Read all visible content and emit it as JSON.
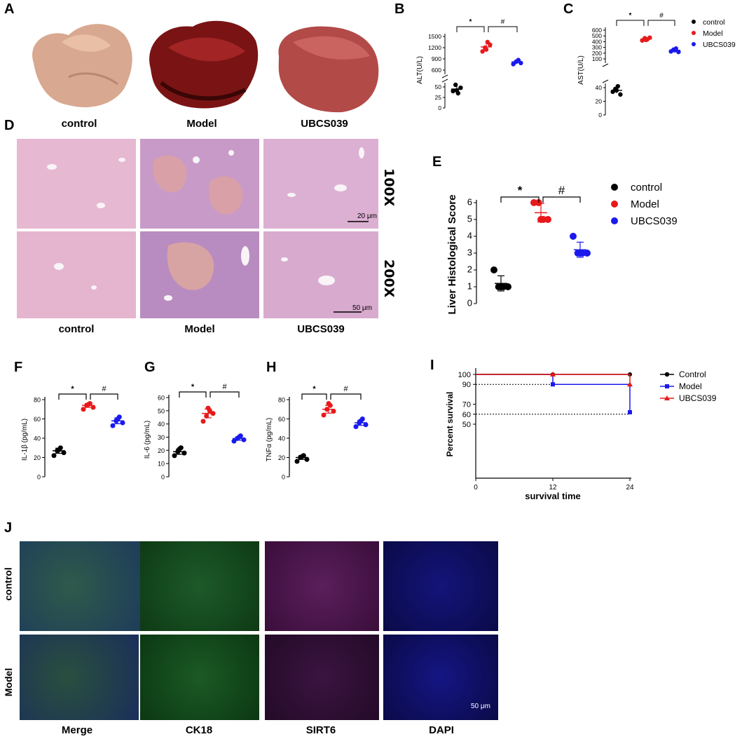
{
  "panel_labels": {
    "A": "A",
    "B": "B",
    "C": "C",
    "D": "D",
    "E": "E",
    "F": "F",
    "G": "G",
    "H": "H",
    "I": "I",
    "J": "J"
  },
  "groups": [
    "control",
    "Model",
    "UBCS039"
  ],
  "colors": {
    "control": "#000000",
    "Model": "#e8191b",
    "UBCS039": "#1a1aee"
  },
  "panelA": {
    "captions": [
      "control",
      "Model",
      "UBCS039"
    ]
  },
  "panelD": {
    "captions": [
      "control",
      "Model",
      "UBCS039"
    ],
    "mag_100": "100X",
    "mag_200": "200X",
    "scale_100": "20 μm",
    "scale_200": "50 μm"
  },
  "panelJ": {
    "columns": [
      "Merge",
      "CK18",
      "SIRT6",
      "DAPI"
    ],
    "rows": [
      "control",
      "Model"
    ],
    "scale": "50 μm"
  },
  "chart_data": [
    {
      "id": "B",
      "type": "scatter",
      "ylabel": "ALT(U/L)",
      "y_ticks_low": [
        "0",
        "25",
        "50"
      ],
      "y_ticks_high": [
        "600",
        "900",
        "1200",
        "1500"
      ],
      "series": [
        {
          "name": "control",
          "values": [
            40,
            55,
            35,
            48,
            42
          ],
          "mean": 45
        },
        {
          "name": "Model",
          "values": [
            1100,
            1200,
            1350,
            1280,
            1150
          ],
          "mean": 1220
        },
        {
          "name": "UBCS039",
          "values": [
            760,
            820,
            870,
            790,
            840
          ],
          "mean": 820
        }
      ],
      "sig": [
        {
          "from": "control",
          "to": "Model",
          "mark": "*"
        },
        {
          "from": "Model",
          "to": "UBCS039",
          "mark": "#"
        }
      ]
    },
    {
      "id": "C",
      "type": "scatter",
      "ylabel": "AST(U/L)",
      "y_ticks_low": [
        "0",
        "20",
        "40"
      ],
      "y_ticks_high": [
        "100",
        "200",
        "300",
        "400",
        "500",
        "600"
      ],
      "series": [
        {
          "name": "control",
          "values": [
            34,
            38,
            42,
            30,
            36
          ],
          "mean": 36
        },
        {
          "name": "Model",
          "values": [
            420,
            460,
            440,
            470,
            430
          ],
          "mean": 445
        },
        {
          "name": "UBCS039",
          "values": [
            230,
            260,
            280,
            220,
            250
          ],
          "mean": 250
        }
      ],
      "legend": [
        "control",
        "Model",
        "UBCS039"
      ],
      "sig": [
        {
          "from": "control",
          "to": "Model",
          "mark": "*"
        },
        {
          "from": "Model",
          "to": "UBCS039",
          "mark": "#"
        }
      ]
    },
    {
      "id": "E",
      "type": "scatter",
      "ylabel": "Liver Histological Score",
      "ylim": [
        0,
        6
      ],
      "y_ticks": [
        "0",
        "1",
        "2",
        "3",
        "4",
        "5",
        "6"
      ],
      "series": [
        {
          "name": "control",
          "values": [
            2,
            1,
            1,
            1,
            1
          ],
          "mean": 1.2,
          "sd": 0.45
        },
        {
          "name": "Model",
          "values": [
            6,
            6,
            5,
            5,
            5
          ],
          "mean": 5.4,
          "sd": 0.55
        },
        {
          "name": "UBCS039",
          "values": [
            4,
            3,
            3,
            3,
            3
          ],
          "mean": 3.2,
          "sd": 0.45
        }
      ],
      "legend": [
        "control",
        "Model",
        "UBCS039"
      ],
      "sig": [
        {
          "from": "control",
          "to": "Model",
          "mark": "*"
        },
        {
          "from": "Model",
          "to": "UBCS039",
          "mark": "#"
        }
      ]
    },
    {
      "id": "F",
      "type": "scatter",
      "ylabel": "IL-1β (pg/mL)",
      "ylim": [
        0,
        80
      ],
      "y_ticks": [
        "0",
        "20",
        "40",
        "60",
        "80"
      ],
      "series": [
        {
          "name": "control",
          "values": [
            22,
            27,
            30,
            25,
            28
          ],
          "mean": 27
        },
        {
          "name": "Model",
          "values": [
            70,
            74,
            76,
            72,
            75
          ],
          "mean": 74
        },
        {
          "name": "UBCS039",
          "values": [
            53,
            58,
            62,
            56,
            60
          ],
          "mean": 58
        }
      ],
      "sig": [
        {
          "from": "control",
          "to": "Model",
          "mark": "*"
        },
        {
          "from": "Model",
          "to": "UBCS039",
          "mark": "#"
        }
      ]
    },
    {
      "id": "G",
      "type": "scatter",
      "ylabel": "IL-6 (pg/mL)",
      "ylim": [
        0,
        60
      ],
      "y_ticks": [
        "0",
        "10",
        "20",
        "30",
        "40",
        "50",
        "60"
      ],
      "series": [
        {
          "name": "control",
          "values": [
            16,
            19,
            22,
            18,
            21
          ],
          "mean": 19
        },
        {
          "name": "Model",
          "values": [
            42,
            46,
            50,
            48,
            52
          ],
          "mean": 48
        },
        {
          "name": "UBCS039",
          "values": [
            27,
            29,
            31,
            28,
            30
          ],
          "mean": 29
        }
      ],
      "sig": [
        {
          "from": "control",
          "to": "Model",
          "mark": "*"
        },
        {
          "from": "Model",
          "to": "UBCS039",
          "mark": "#"
        }
      ]
    },
    {
      "id": "H",
      "type": "scatter",
      "ylabel": "TNFα (pg/mL)",
      "ylim": [
        0,
        80
      ],
      "y_ticks": [
        "0",
        "20",
        "40",
        "60",
        "80"
      ],
      "series": [
        {
          "name": "control",
          "values": [
            16,
            20,
            22,
            18,
            21
          ],
          "mean": 20
        },
        {
          "name": "Model",
          "values": [
            64,
            70,
            74,
            68,
            76
          ],
          "mean": 70
        },
        {
          "name": "UBCS039",
          "values": [
            52,
            56,
            60,
            54,
            58
          ],
          "mean": 56
        }
      ],
      "sig": [
        {
          "from": "control",
          "to": "Model",
          "mark": "*"
        },
        {
          "from": "Model",
          "to": "UBCS039",
          "mark": "#"
        }
      ]
    },
    {
      "id": "I",
      "type": "line",
      "xlabel": "survival time",
      "ylabel": "Percent survival",
      "x_ticks": [
        "0",
        "12",
        "24"
      ],
      "y_ticks": [
        "50",
        "60",
        "70",
        "90",
        "100"
      ],
      "series": [
        {
          "name": "Control",
          "x": [
            0,
            12,
            24
          ],
          "y": [
            100,
            100,
            100
          ]
        },
        {
          "name": "Model",
          "x": [
            0,
            12,
            24
          ],
          "y": [
            100,
            90,
            62
          ]
        },
        {
          "name": "UBCS039",
          "x": [
            0,
            12,
            24
          ],
          "y": [
            100,
            100,
            90
          ]
        }
      ],
      "legend": [
        "Control",
        "Model",
        "UBCS039"
      ]
    }
  ]
}
